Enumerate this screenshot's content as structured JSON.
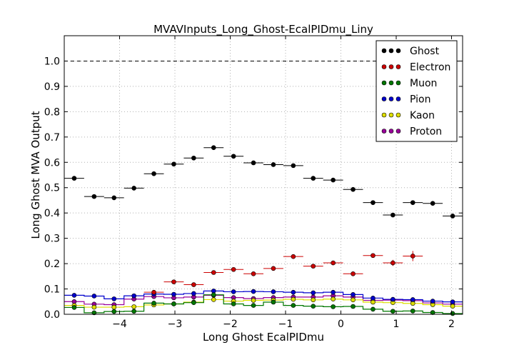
{
  "chart_data": {
    "type": "scatter",
    "title": "MVAVInputs_Long_Ghost-EcalPIDmu_Liny",
    "xlabel": "Long Ghost EcalPIDmu",
    "ylabel": "Long Ghost MVA Output",
    "xlim": [
      -5.0,
      2.2
    ],
    "ylim": [
      0.0,
      1.1
    ],
    "xticks": [
      -4,
      -3,
      -2,
      -1,
      0,
      1,
      2
    ],
    "xtick_labels": [
      "−4",
      "−3",
      "−2",
      "−1",
      "0",
      "1",
      "2"
    ],
    "yticks": [
      0.0,
      0.1,
      0.2,
      0.3,
      0.4,
      0.5,
      0.6,
      0.7,
      0.8,
      0.9,
      1.0
    ],
    "ytick_labels": [
      "0.0",
      "0.1",
      "0.2",
      "0.3",
      "0.4",
      "0.5",
      "0.6",
      "0.7",
      "0.8",
      "0.9",
      "1.0"
    ],
    "reference_line": 1.0,
    "grid": true,
    "legend_position": "top-right",
    "bin_half_width": 0.18,
    "x": [
      -4.82,
      -4.46,
      -4.1,
      -3.74,
      -3.38,
      -3.02,
      -2.66,
      -2.3,
      -1.94,
      -1.58,
      -1.22,
      -0.86,
      -0.5,
      -0.14,
      0.22,
      0.58,
      0.94,
      1.3,
      1.66,
      2.02
    ],
    "series": [
      {
        "name": "Ghost",
        "color": "#000000",
        "draw_line": false,
        "values": [
          0.537,
          0.465,
          0.46,
          0.498,
          0.555,
          0.593,
          0.617,
          0.658,
          0.624,
          0.598,
          0.591,
          0.587,
          0.537,
          0.53,
          0.493,
          0.441,
          0.392,
          0.441,
          0.438,
          0.388
        ],
        "errors": [
          0.004,
          0.003,
          0.003,
          0.003,
          0.003,
          0.003,
          0.003,
          0.003,
          0.003,
          0.003,
          0.003,
          0.003,
          0.003,
          0.003,
          0.003,
          0.004,
          0.004,
          0.004,
          0.004,
          0.004
        ]
      },
      {
        "name": "Electron",
        "color": "#cc0000",
        "draw_line": false,
        "values": [
          null,
          null,
          null,
          null,
          0.087,
          0.128,
          0.117,
          0.165,
          0.177,
          0.16,
          0.181,
          0.228,
          0.19,
          0.203,
          0.16,
          0.232,
          0.203,
          0.23,
          null,
          null
        ],
        "errors": [
          0,
          0,
          0,
          0,
          0.004,
          0.004,
          0.004,
          0.004,
          0.004,
          0.004,
          0.004,
          0.005,
          0.005,
          0.006,
          0.006,
          0.008,
          0.012,
          0.02,
          0,
          0
        ]
      },
      {
        "name": "Muon",
        "color": "#007700",
        "draw_line": true,
        "values": [
          0.027,
          0.006,
          0.011,
          0.012,
          0.044,
          0.041,
          0.046,
          0.077,
          0.041,
          0.035,
          0.048,
          0.035,
          0.032,
          0.03,
          0.031,
          0.02,
          0.012,
          0.013,
          0.007,
          0.003
        ],
        "errors": [
          0,
          0,
          0,
          0,
          0,
          0,
          0,
          0,
          0,
          0,
          0,
          0,
          0,
          0,
          0,
          0,
          0,
          0,
          0,
          0
        ]
      },
      {
        "name": "Pion",
        "color": "#0000cc",
        "draw_line": true,
        "values": [
          0.075,
          0.072,
          0.061,
          0.073,
          0.08,
          0.079,
          0.082,
          0.092,
          0.089,
          0.09,
          0.089,
          0.087,
          0.085,
          0.087,
          0.078,
          0.064,
          0.059,
          0.058,
          0.052,
          0.049
        ],
        "errors": [
          0,
          0,
          0,
          0,
          0,
          0,
          0,
          0,
          0,
          0,
          0,
          0,
          0,
          0,
          0,
          0,
          0,
          0,
          0,
          0
        ]
      },
      {
        "name": "Kaon",
        "color": "#dddd00",
        "draw_line": true,
        "values": [
          0.035,
          0.028,
          0.028,
          0.03,
          0.037,
          0.041,
          0.048,
          0.058,
          0.052,
          0.055,
          0.056,
          0.059,
          0.057,
          0.06,
          0.057,
          0.048,
          0.046,
          0.043,
          0.038,
          0.032
        ],
        "errors": [
          0,
          0,
          0,
          0,
          0,
          0,
          0,
          0,
          0,
          0,
          0,
          0,
          0,
          0,
          0,
          0,
          0,
          0,
          0,
          0
        ]
      },
      {
        "name": "Proton",
        "color": "#990099",
        "draw_line": true,
        "values": [
          0.05,
          0.04,
          0.038,
          0.06,
          0.07,
          0.065,
          0.068,
          0.075,
          0.066,
          0.062,
          0.066,
          0.068,
          0.068,
          0.073,
          0.068,
          0.055,
          0.056,
          0.054,
          0.045,
          0.04
        ],
        "errors": [
          0,
          0,
          0,
          0,
          0,
          0,
          0,
          0,
          0,
          0,
          0,
          0,
          0,
          0,
          0,
          0,
          0,
          0,
          0,
          0
        ]
      }
    ]
  }
}
